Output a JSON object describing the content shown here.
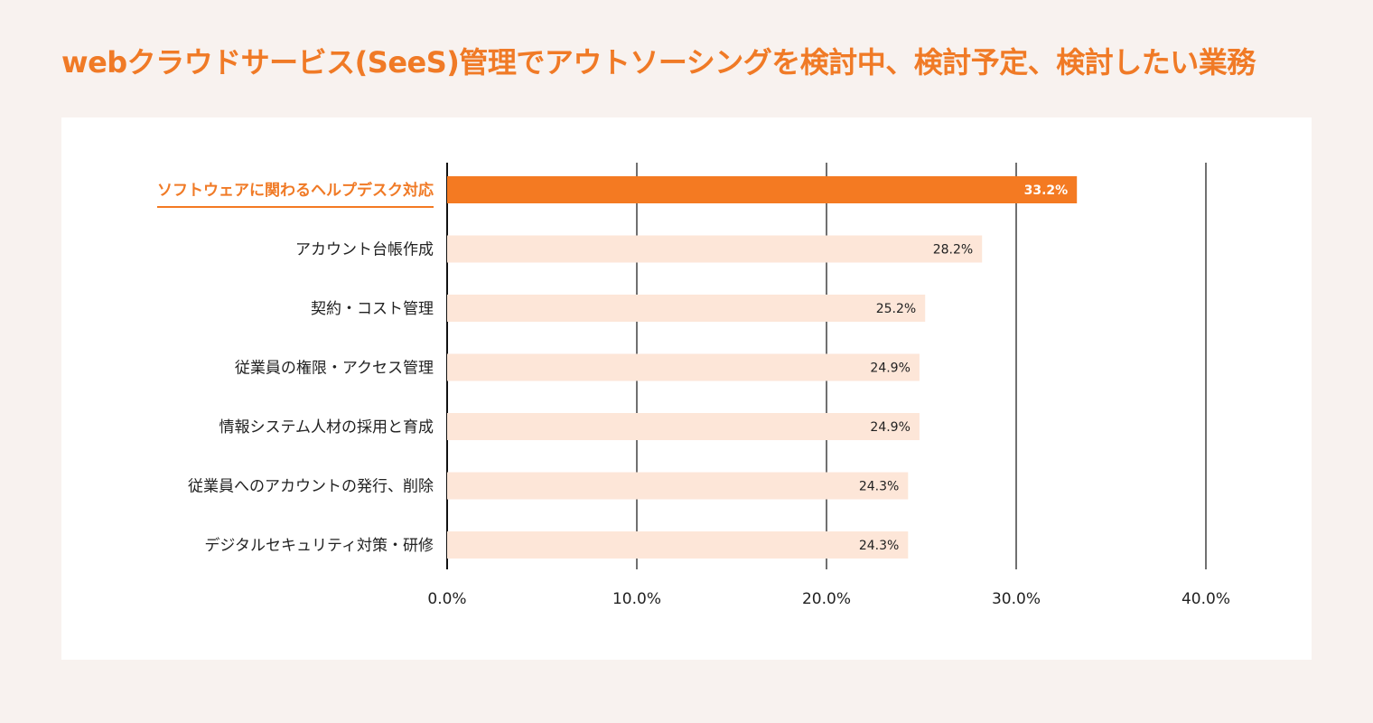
{
  "chart_data": {
    "type": "bar",
    "orientation": "horizontal",
    "title": "webクラウドサービス(SeeS)管理でアウトソーシングを検討中、検討予定、検討したい業務",
    "categories": [
      "ソフトウェアに関わるヘルプデスク対応",
      "アカウント台帳作成",
      "契約・コスト管理",
      "従業員の権限・アクセス管理",
      "情報システム人材の採用と育成",
      "従業員へのアカウントの発行、削除",
      "デジタルセキュリティ対策・研修"
    ],
    "values": [
      33.2,
      28.2,
      25.2,
      24.9,
      24.9,
      24.3,
      24.3
    ],
    "value_labels": [
      "33.2%",
      "28.2%",
      "25.2%",
      "24.9%",
      "24.9%",
      "24.3%",
      "24.3%"
    ],
    "highlight_index": 0,
    "xlim": [
      0,
      40
    ],
    "x_ticks": [
      0,
      10,
      20,
      30,
      40
    ],
    "x_tick_labels": [
      "0.0%",
      "10.0%",
      "20.0%",
      "30.0%",
      "40.0%"
    ],
    "grid": true,
    "xlabel": "",
    "ylabel": "",
    "colors": {
      "highlight": "#f47a22",
      "bar": "#fde6d8",
      "title": "#f07a26"
    }
  }
}
